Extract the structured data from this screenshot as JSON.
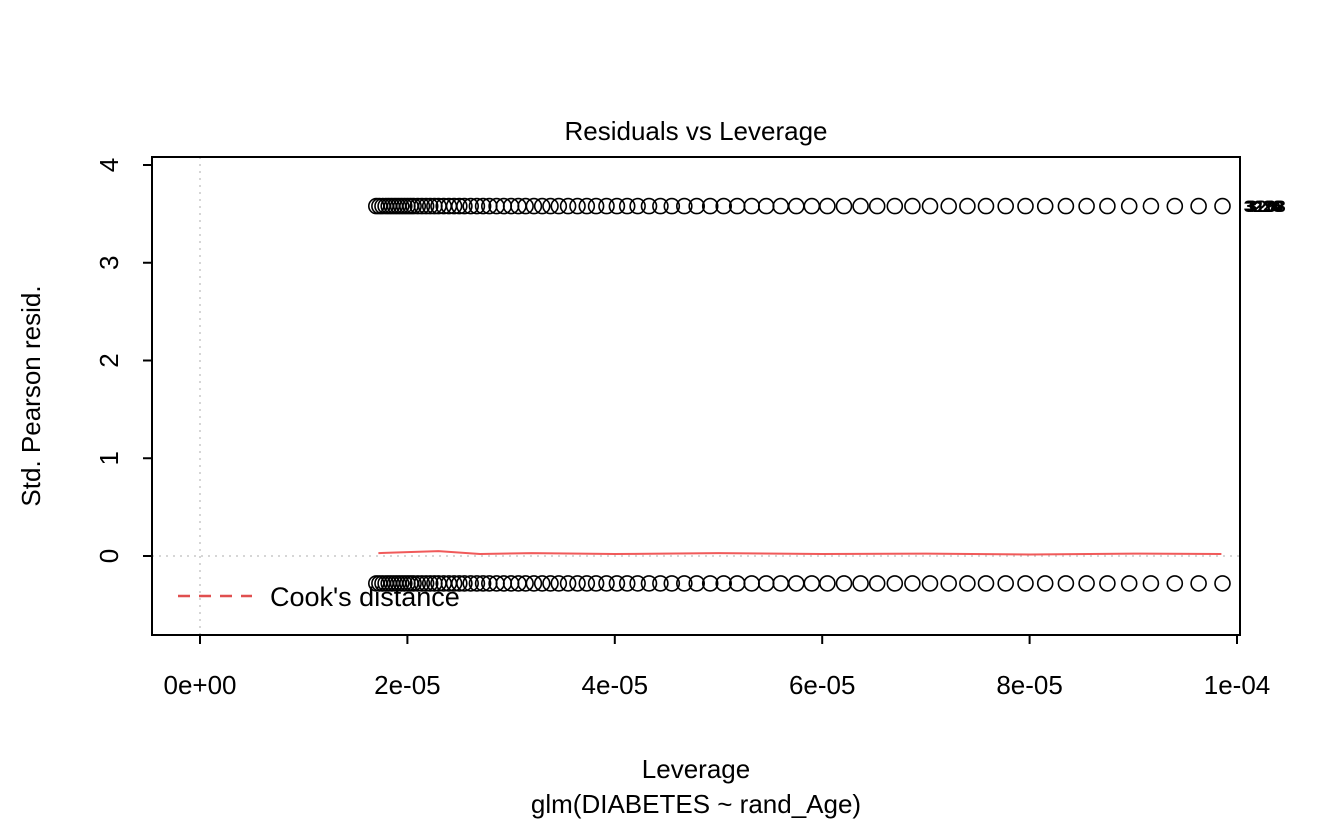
{
  "chart_data": {
    "type": "scatter",
    "title": "Residuals vs Leverage",
    "xlabel": "Leverage",
    "model_label": "glm(DIABETES ~ rand_Age)",
    "ylabel": "Std. Pearson resid.",
    "xlim": [
      -4.6e-06,
      0.0001004
    ],
    "ylim": [
      -0.81,
      4.08
    ],
    "grid": "off",
    "reference_lines": {
      "vertical_x": 0,
      "horizontal_y": 0,
      "style": "dotted"
    },
    "xticks": [
      {
        "value": 0,
        "label": "0e+00"
      },
      {
        "value": 2e-05,
        "label": "2e-05"
      },
      {
        "value": 4e-05,
        "label": "4e-05"
      },
      {
        "value": 6e-05,
        "label": "6e-05"
      },
      {
        "value": 8e-05,
        "label": "8e-05"
      },
      {
        "value": 0.0001,
        "label": "1e-04"
      }
    ],
    "yticks": [
      {
        "value": 0,
        "label": "0"
      },
      {
        "value": 1,
        "label": "1"
      },
      {
        "value": 2,
        "label": "2"
      },
      {
        "value": 3,
        "label": "3"
      },
      {
        "value": 4,
        "label": "4"
      }
    ],
    "x_unit": 1e-05,
    "series": [
      {
        "name": "upper-residual-band",
        "y": 3.58,
        "x": [
          1.7,
          1.73,
          1.76,
          1.79,
          1.82,
          1.85,
          1.88,
          1.91,
          1.94,
          1.97,
          2.0,
          2.03,
          2.06,
          2.1,
          2.14,
          2.18,
          2.22,
          2.26,
          2.3,
          2.35,
          2.4,
          2.45,
          2.5,
          2.55,
          2.61,
          2.67,
          2.73,
          2.79,
          2.86,
          2.93,
          3.0,
          3.07,
          3.14,
          3.22,
          3.3,
          3.38,
          3.46,
          3.55,
          3.64,
          3.73,
          3.82,
          3.92,
          4.02,
          4.12,
          4.22,
          4.33,
          4.44,
          4.55,
          4.67,
          4.79,
          4.92,
          5.05,
          5.18,
          5.32,
          5.46,
          5.6,
          5.75,
          5.9,
          6.05,
          6.21,
          6.37,
          6.53,
          6.7,
          6.87,
          7.04,
          7.22,
          7.4,
          7.58,
          7.77,
          7.96,
          8.15,
          8.35,
          8.55,
          8.75,
          8.96,
          9.17,
          9.4,
          9.63,
          9.86
        ]
      },
      {
        "name": "lower-residual-band",
        "y": -0.28,
        "x": [
          1.7,
          1.73,
          1.76,
          1.79,
          1.82,
          1.85,
          1.88,
          1.91,
          1.94,
          1.97,
          2.0,
          2.03,
          2.06,
          2.1,
          2.14,
          2.18,
          2.22,
          2.26,
          2.3,
          2.35,
          2.4,
          2.45,
          2.5,
          2.55,
          2.61,
          2.67,
          2.73,
          2.79,
          2.86,
          2.93,
          3.0,
          3.07,
          3.14,
          3.22,
          3.3,
          3.38,
          3.46,
          3.55,
          3.64,
          3.73,
          3.82,
          3.92,
          4.02,
          4.12,
          4.22,
          4.33,
          4.44,
          4.55,
          4.67,
          4.79,
          4.92,
          5.05,
          5.18,
          5.32,
          5.46,
          5.6,
          5.75,
          5.9,
          6.05,
          6.21,
          6.37,
          6.53,
          6.7,
          6.87,
          7.04,
          7.22,
          7.4,
          7.58,
          7.77,
          7.96,
          8.15,
          8.35,
          8.55,
          8.75,
          8.96,
          9.17,
          9.4,
          9.63,
          9.86
        ]
      }
    ],
    "smoother": {
      "name": "red-smooth-line",
      "points": [
        [
          1.72,
          0.03
        ],
        [
          2.0,
          0.04
        ],
        [
          2.3,
          0.05
        ],
        [
          2.7,
          0.02
        ],
        [
          3.2,
          0.03
        ],
        [
          4.0,
          0.02
        ],
        [
          5.0,
          0.03
        ],
        [
          6.0,
          0.02
        ],
        [
          7.0,
          0.025
        ],
        [
          8.0,
          0.015
        ],
        [
          9.0,
          0.025
        ],
        [
          9.85,
          0.02
        ]
      ]
    },
    "point_labels": [
      {
        "text": "3226",
        "x": 9.95,
        "y": 3.58,
        "dx": 0
      },
      {
        "text": "3190",
        "x": 9.95,
        "y": 3.58,
        "dx": 2
      },
      {
        "text": "3208",
        "x": 9.95,
        "y": 3.58,
        "dx": 4
      }
    ]
  },
  "legend": {
    "label": "Cook's distance",
    "line_style": "dashed"
  },
  "colors": {
    "point": "#000000",
    "smoother": "#f05a5a",
    "legend_line": "#e04f4f",
    "reference": "#c8c8c8",
    "box": "#000000"
  }
}
